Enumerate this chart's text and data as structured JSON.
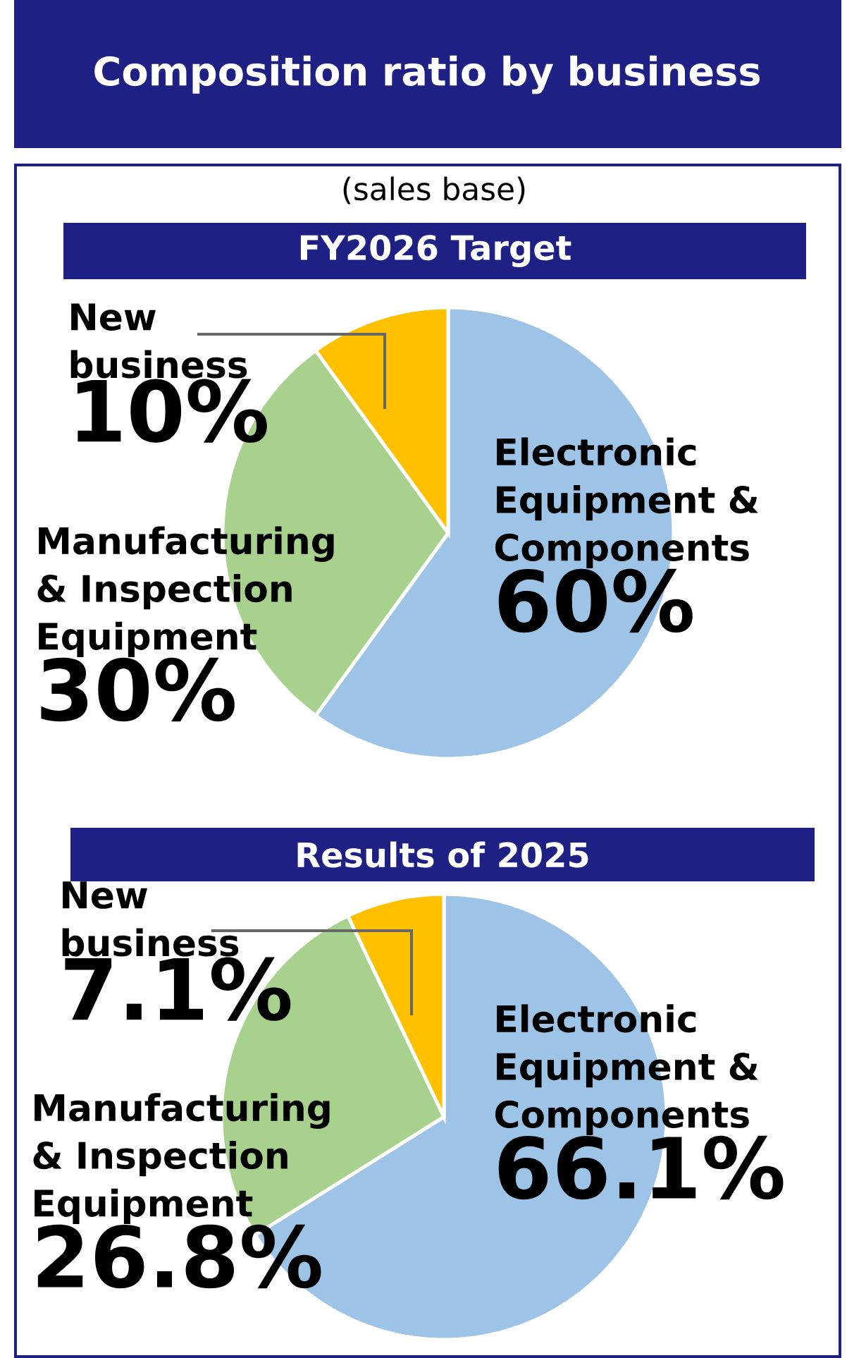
{
  "chart_data": [
    {
      "type": "other",
      "title": "Composition ratio by business",
      "subtitle": "(sales base)"
    },
    {
      "type": "pie",
      "title": "FY2026 Target",
      "categories": [
        "Electronic Equipment & Components",
        "Manufacturing & Inspection Equipment",
        "New business"
      ],
      "values": [
        60,
        30,
        10
      ],
      "colors": [
        "#9dc3e6",
        "#a9d18e",
        "#ffc000"
      ],
      "value_labels": [
        "60%",
        "30%",
        "10%"
      ]
    },
    {
      "type": "pie",
      "title": "Results of 2025",
      "categories": [
        "Electronic Equipment & Components",
        "Manufacturing & Inspection Equipment",
        "New business"
      ],
      "values": [
        66.1,
        26.8,
        7.1
      ],
      "colors": [
        "#9dc3e6",
        "#a9d18e",
        "#ffc000"
      ],
      "value_labels": [
        "66.1%",
        "26.8%",
        "7.1%"
      ]
    }
  ]
}
